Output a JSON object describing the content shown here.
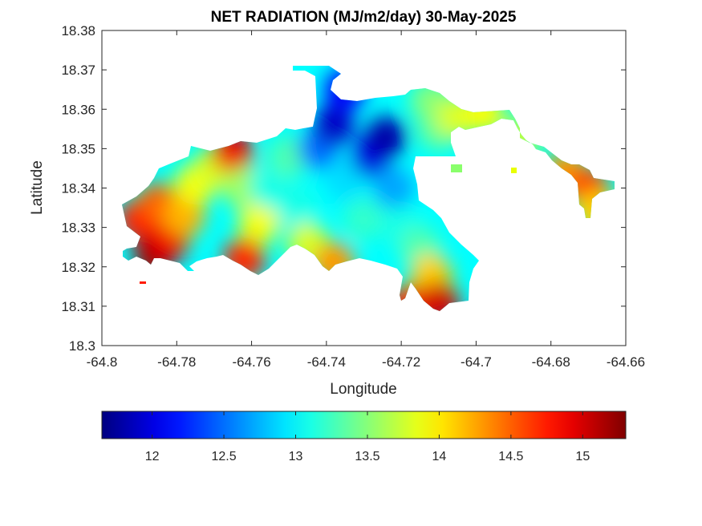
{
  "chart_data": {
    "type": "heatmap",
    "title": "NET RADIATION (MJ/m2/day) 30-May-2025",
    "xlabel": "Longitude",
    "ylabel": "Latitude",
    "xlim": [
      -64.8,
      -64.66
    ],
    "ylim": [
      18.3,
      18.38
    ],
    "x_ticks": [
      -64.8,
      -64.78,
      -64.76,
      -64.74,
      -64.72,
      -64.7,
      -64.68,
      -64.66
    ],
    "x_tick_labels": [
      "-64.8",
      "-64.78",
      "-64.76",
      "-64.74",
      "-64.72",
      "-64.7",
      "-64.68",
      "-64.66"
    ],
    "y_ticks": [
      18.3,
      18.31,
      18.32,
      18.33,
      18.34,
      18.35,
      18.36,
      18.37,
      18.38
    ],
    "y_tick_labels": [
      "18.3",
      "18.31",
      "18.32",
      "18.33",
      "18.34",
      "18.35",
      "18.36",
      "18.37",
      "18.38"
    ],
    "colormap": "jet",
    "colorbar": {
      "range": [
        11.65,
        15.3
      ],
      "ticks": [
        12,
        12.5,
        13,
        13.5,
        14,
        14.5,
        15
      ],
      "tick_labels": [
        "12",
        "12.5",
        "13",
        "13.5",
        "14",
        "14.5",
        "15"
      ],
      "orientation": "horizontal",
      "placement": "bottom"
    },
    "grid": false,
    "samples": [
      {
        "lon": -64.79,
        "lat": 18.332,
        "value": 14.8
      },
      {
        "lon": -64.786,
        "lat": 18.323,
        "value": 15.2
      },
      {
        "lon": -64.782,
        "lat": 18.327,
        "value": 14.9
      },
      {
        "lon": -64.785,
        "lat": 18.336,
        "value": 14.5
      },
      {
        "lon": -64.778,
        "lat": 18.333,
        "value": 14.2
      },
      {
        "lon": -64.775,
        "lat": 18.341,
        "value": 13.9
      },
      {
        "lon": -64.77,
        "lat": 18.345,
        "value": 13.8
      },
      {
        "lon": -64.765,
        "lat": 18.349,
        "value": 14.9
      },
      {
        "lon": -64.762,
        "lat": 18.34,
        "value": 13.6
      },
      {
        "lon": -64.758,
        "lat": 18.331,
        "value": 13.9
      },
      {
        "lon": -64.762,
        "lat": 18.322,
        "value": 14.7
      },
      {
        "lon": -64.755,
        "lat": 18.34,
        "value": 13.1
      },
      {
        "lon": -64.75,
        "lat": 18.348,
        "value": 13.3
      },
      {
        "lon": -64.748,
        "lat": 18.335,
        "value": 13.1
      },
      {
        "lon": -64.745,
        "lat": 18.326,
        "value": 13.8
      },
      {
        "lon": -64.738,
        "lat": 18.321,
        "value": 14.3
      },
      {
        "lon": -64.742,
        "lat": 18.35,
        "value": 12.5
      },
      {
        "lon": -64.738,
        "lat": 18.356,
        "value": 11.9
      },
      {
        "lon": -64.735,
        "lat": 18.365,
        "value": 12.1
      },
      {
        "lon": -64.735,
        "lat": 18.342,
        "value": 12.9
      },
      {
        "lon": -64.728,
        "lat": 18.348,
        "value": 12.0
      },
      {
        "lon": -64.724,
        "lat": 18.353,
        "value": 11.8
      },
      {
        "lon": -64.722,
        "lat": 18.34,
        "value": 12.7
      },
      {
        "lon": -64.73,
        "lat": 18.332,
        "value": 13.2
      },
      {
        "lon": -64.72,
        "lat": 18.33,
        "value": 13.1
      },
      {
        "lon": -64.715,
        "lat": 18.325,
        "value": 13.3
      },
      {
        "lon": -64.712,
        "lat": 18.318,
        "value": 14.1
      },
      {
        "lon": -64.718,
        "lat": 18.31,
        "value": 14.7
      },
      {
        "lon": -64.71,
        "lat": 18.311,
        "value": 15.0
      },
      {
        "lon": -64.71,
        "lat": 18.355,
        "value": 13.4
      },
      {
        "lon": -64.712,
        "lat": 18.362,
        "value": 13.5
      },
      {
        "lon": -64.705,
        "lat": 18.358,
        "value": 13.8
      },
      {
        "lon": -64.698,
        "lat": 18.359,
        "value": 13.9
      },
      {
        "lon": -64.688,
        "lat": 18.353,
        "value": 13.7
      },
      {
        "lon": -64.676,
        "lat": 18.344,
        "value": 14.3
      },
      {
        "lon": -64.67,
        "lat": 18.34,
        "value": 14.6
      },
      {
        "lon": -64.668,
        "lat": 18.334,
        "value": 14.1
      }
    ]
  }
}
